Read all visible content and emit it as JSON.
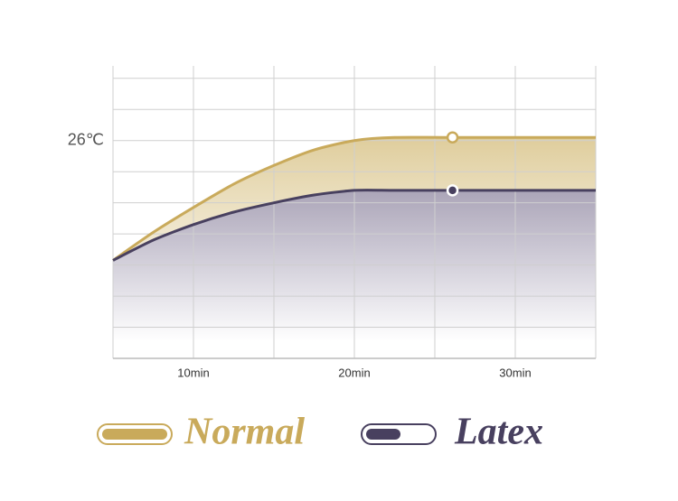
{
  "chart_data": {
    "type": "line",
    "x": [
      5,
      7.5,
      10,
      12.5,
      15,
      17.5,
      20,
      22.5,
      26.1,
      35
    ],
    "series": [
      {
        "name": "Normal",
        "color": "#c9aa5b",
        "values": [
          22.15,
          23.05,
          23.85,
          24.6,
          25.2,
          25.7,
          26.0,
          26.1,
          26.1,
          26.1
        ]
      },
      {
        "name": "Latex",
        "color": "#48405f",
        "values": [
          22.15,
          22.8,
          23.3,
          23.7,
          24.0,
          24.25,
          24.4,
          24.4,
          24.4,
          24.4
        ]
      }
    ],
    "marker_index": 8,
    "xlim": [
      5,
      35
    ],
    "xticks": [
      {
        "value": 10,
        "label": "10min"
      },
      {
        "value": 20,
        "label": "20min"
      },
      {
        "value": 30,
        "label": "30min"
      }
    ],
    "xgrid": [
      5,
      10,
      15,
      20,
      25,
      30,
      35
    ],
    "ylim": [
      19,
      28.4
    ],
    "yticks": [
      {
        "value": 26,
        "label": "26℃"
      }
    ],
    "ygrid": [
      19,
      20,
      21,
      22,
      23,
      24,
      25,
      26,
      27,
      28
    ],
    "grid": true
  }
}
